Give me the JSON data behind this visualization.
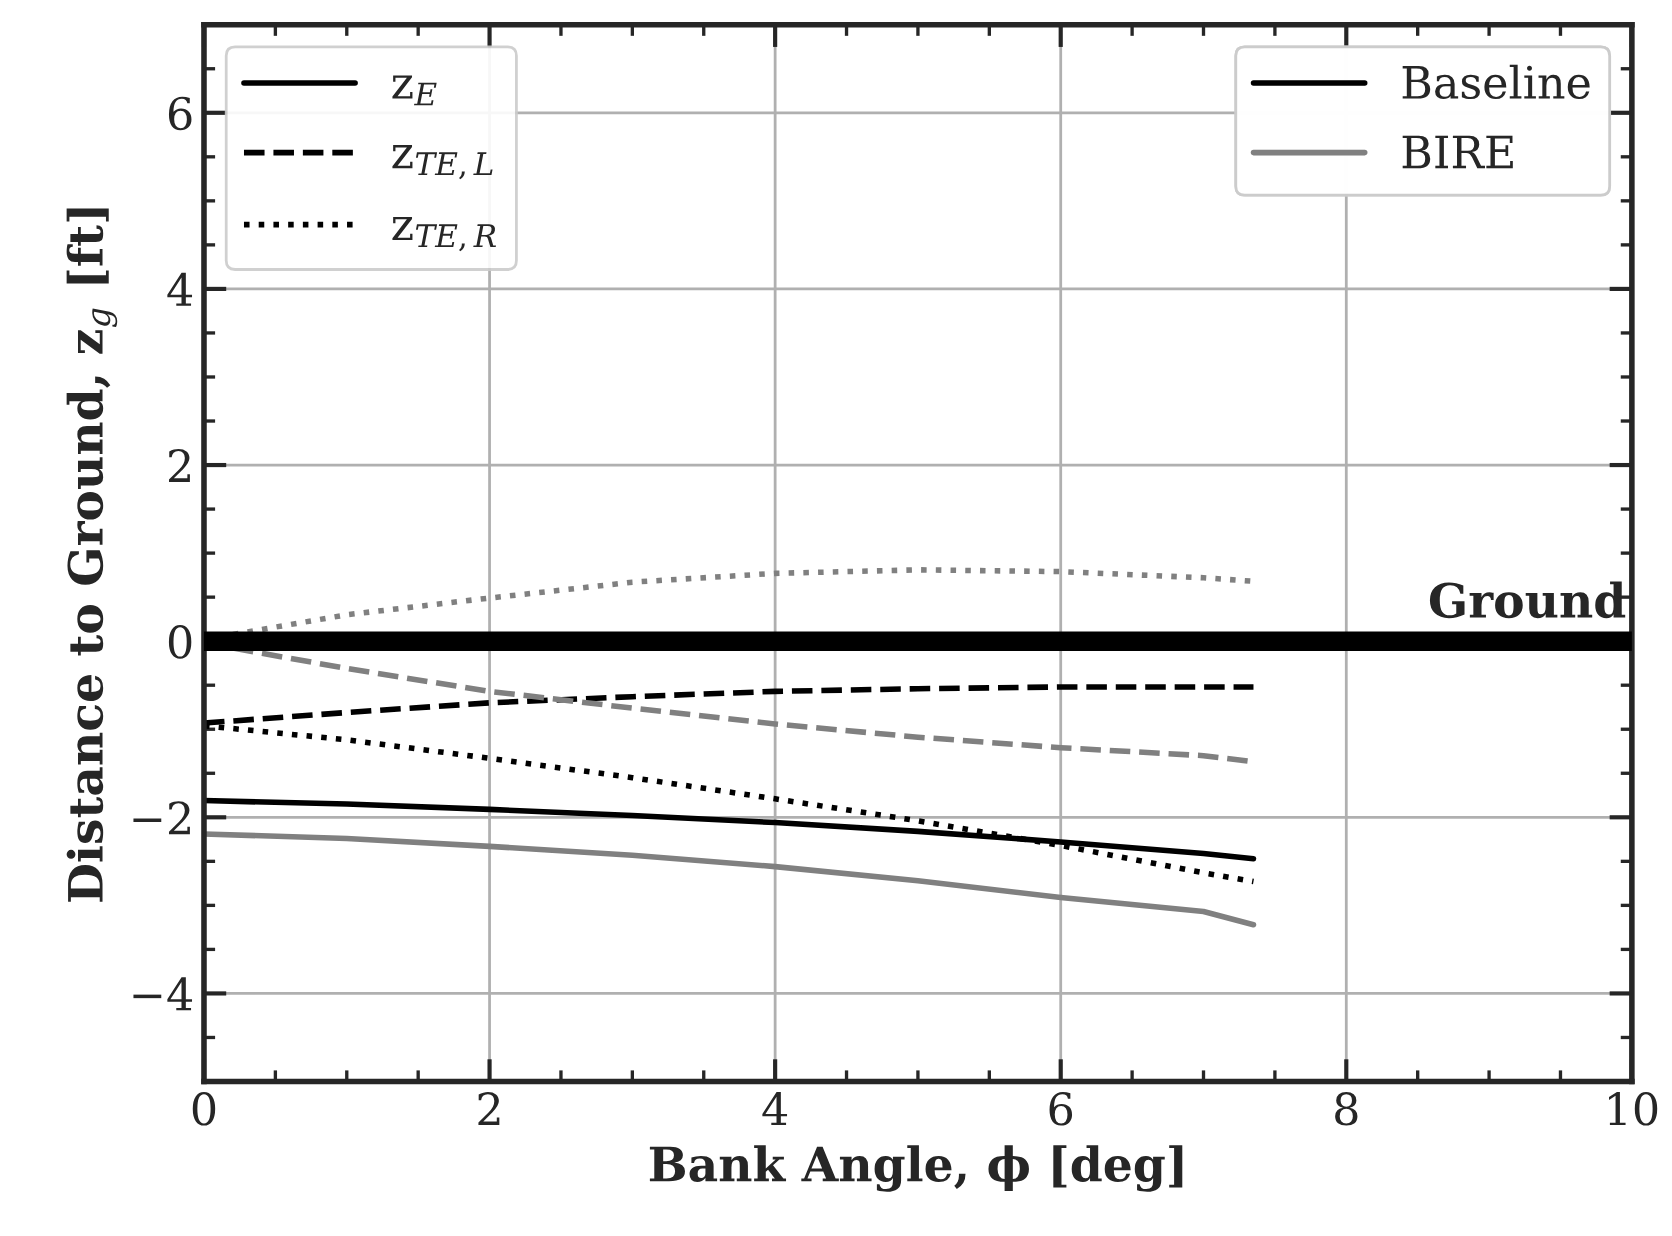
{
  "chart_data": {
    "type": "line",
    "xlabel": "Bank Angle, ϕ [deg]",
    "ylabel": "Distance to Ground, z$_{g}$ [ft]",
    "x": [
      0,
      1,
      2,
      3,
      4,
      5,
      6,
      7,
      7.35
    ],
    "legend": "top right",
    "xlim": [
      0,
      10
    ],
    "xticks": [
      0,
      2,
      4,
      6,
      8,
      10
    ],
    "ylim": [
      -5,
      7
    ],
    "yticks": [
      -4,
      -2,
      0,
      2,
      4,
      6
    ],
    "grid": true,
    "ref_lines": [
      {
        "axis": "y",
        "value": 0,
        "label": "Ground",
        "color": "#000000"
      }
    ],
    "series": [
      {
        "color": "#000000",
        "line_style": "solid",
        "values": [
          -1.81,
          -1.85,
          -1.91,
          -1.98,
          -2.06,
          -2.16,
          -2.28,
          -2.41,
          -2.47
        ]
      },
      {
        "color": "#808080",
        "line_style": "solid",
        "values": [
          -2.19,
          -2.24,
          -2.33,
          -2.43,
          -2.56,
          -2.72,
          -2.91,
          -3.07,
          -3.22
        ]
      },
      {
        "color": "#000000",
        "line_style": "dashed",
        "values": [
          -0.93,
          -0.81,
          -0.7,
          -0.63,
          -0.57,
          -0.54,
          -0.52,
          -0.52,
          -0.52
        ]
      },
      {
        "color": "#808080",
        "line_style": "dashed",
        "values": [
          -0.02,
          -0.31,
          -0.57,
          -0.76,
          -0.94,
          -1.09,
          -1.21,
          -1.3,
          -1.37
        ]
      },
      {
        "color": "#000000",
        "line_style": "dotted",
        "values": [
          -0.96,
          -1.12,
          -1.33,
          -1.55,
          -1.79,
          -2.04,
          -2.32,
          -2.63,
          -2.73
        ]
      },
      {
        "color": "#808080",
        "line_style": "dotted",
        "values": [
          0.02,
          0.3,
          0.49,
          0.67,
          0.77,
          0.81,
          0.79,
          0.72,
          0.68
        ]
      },
      {
        "name": "z$_{E}$",
        "color": "#000000",
        "line_style": "solid",
        "values": [
          null,
          null,
          null,
          null,
          null,
          null,
          null,
          null,
          null
        ]
      },
      {
        "name": "z$_{TE,L}$",
        "color": "#000000",
        "line_style": "dashed",
        "values": [
          null,
          null,
          null,
          null,
          null,
          null,
          null,
          null,
          null
        ]
      },
      {
        "name": "z$_{TE,R}$",
        "color": "#000000",
        "line_style": "dotted",
        "values": [
          null,
          null,
          null,
          null,
          null,
          null,
          null,
          null,
          null
        ]
      },
      {
        "name": "Baseline",
        "color": "#000000",
        "line_style": "solid",
        "values": [
          null,
          null,
          null,
          null,
          null,
          null,
          null,
          null,
          null
        ]
      },
      {
        "name": "BIRE",
        "color": "#808080",
        "line_style": "solid",
        "values": [
          null,
          null,
          null,
          null,
          null,
          null,
          null,
          null,
          null
        ]
      }
    ]
  }
}
